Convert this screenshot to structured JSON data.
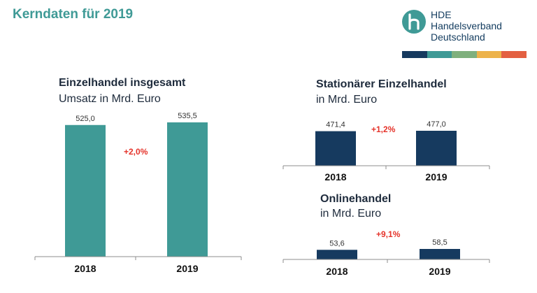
{
  "header": {
    "title": "Kerndaten für 2019",
    "logo": {
      "lines": [
        "HDE",
        "Handelsverband",
        "Deutschland"
      ],
      "mark_color": "#3f9a96",
      "strip_colors": [
        "#163a5f",
        "#3f9a96",
        "#7fb07d",
        "#edb34b",
        "#e36041"
      ]
    }
  },
  "colors": {
    "teal": "#3f9a96",
    "navy": "#163a5f",
    "delta_red": "#e5332a"
  },
  "chart_data": [
    {
      "id": "einzelhandel",
      "type": "bar",
      "title": "Einzelhandel insgesamt",
      "subtitle": "Umsatz in Mrd. Euro",
      "categories": [
        "2018",
        "2019"
      ],
      "values": [
        525.0,
        535.5
      ],
      "value_labels": [
        "525,0",
        "535,5"
      ],
      "change_label": "+2,0%",
      "color": "#3f9a96"
    },
    {
      "id": "stationaer",
      "type": "bar",
      "title": "Stationärer Einzelhandel",
      "subtitle": "in Mrd. Euro",
      "categories": [
        "2018",
        "2019"
      ],
      "values": [
        471.4,
        477.0
      ],
      "value_labels": [
        "471,4",
        "477,0"
      ],
      "change_label": "+1,2%",
      "color": "#163a5f"
    },
    {
      "id": "online",
      "type": "bar",
      "title": "Onlinehandel",
      "subtitle": "in Mrd. Euro",
      "categories": [
        "2018",
        "2019"
      ],
      "values": [
        53.6,
        58.5
      ],
      "value_labels": [
        "53,6",
        "58,5"
      ],
      "change_label": "+9,1%",
      "color": "#163a5f"
    }
  ]
}
